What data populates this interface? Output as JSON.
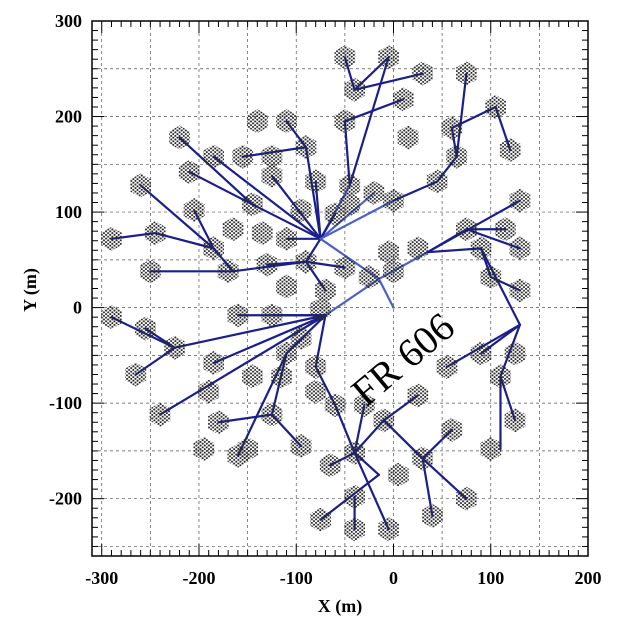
{
  "chart_data": {
    "type": "scatter",
    "xlabel": "X (m)",
    "ylabel": "Y (m)",
    "xlim": [
      -310,
      200
    ],
    "ylim": [
      -260,
      300
    ],
    "xticks": [
      -300,
      -200,
      -100,
      0,
      100,
      200
    ],
    "yticks": [
      -200,
      -100,
      0,
      100,
      200,
      300
    ],
    "xtick_labels": [
      "-300",
      "-200",
      "-100",
      "0",
      "100",
      "200"
    ],
    "ytick_labels": [
      "-200",
      "-100",
      "0",
      "100",
      "200",
      "300"
    ],
    "grid": true,
    "annotation": {
      "text": "FR 606",
      "x": 0,
      "y": -50,
      "rotation_deg": -40
    },
    "colors": {
      "cable_main": "#1a1f8c",
      "cable_light": "#4a62c8",
      "tile": "#2b2b2b",
      "grid": "#555555"
    },
    "core": {
      "x": -15,
      "y": 30
    },
    "hubs": [
      {
        "x": -75,
        "y": 72
      },
      {
        "x": 35,
        "y": 58
      },
      {
        "x": -70,
        "y": -8
      },
      {
        "x": -15,
        "y": -120
      }
    ],
    "tiles": [
      {
        "x": -50,
        "y": 262
      },
      {
        "x": -5,
        "y": 262
      },
      {
        "x": 30,
        "y": 245
      },
      {
        "x": 75,
        "y": 245
      },
      {
        "x": -40,
        "y": 228
      },
      {
        "x": 10,
        "y": 218
      },
      {
        "x": 105,
        "y": 210
      },
      {
        "x": -140,
        "y": 195
      },
      {
        "x": -110,
        "y": 195
      },
      {
        "x": -50,
        "y": 195
      },
      {
        "x": 60,
        "y": 188
      },
      {
        "x": -220,
        "y": 178
      },
      {
        "x": -90,
        "y": 168
      },
      {
        "x": 15,
        "y": 178
      },
      {
        "x": 120,
        "y": 165
      },
      {
        "x": -185,
        "y": 158
      },
      {
        "x": -155,
        "y": 158
      },
      {
        "x": -125,
        "y": 158
      },
      {
        "x": 65,
        "y": 158
      },
      {
        "x": -210,
        "y": 142
      },
      {
        "x": -125,
        "y": 138
      },
      {
        "x": -80,
        "y": 132
      },
      {
        "x": -45,
        "y": 128
      },
      {
        "x": -20,
        "y": 120
      },
      {
        "x": 45,
        "y": 132
      },
      {
        "x": -260,
        "y": 128
      },
      {
        "x": -45,
        "y": 108
      },
      {
        "x": 0,
        "y": 112
      },
      {
        "x": -205,
        "y": 102
      },
      {
        "x": -145,
        "y": 108
      },
      {
        "x": -95,
        "y": 102
      },
      {
        "x": -60,
        "y": 98
      },
      {
        "x": 130,
        "y": 112
      },
      {
        "x": -290,
        "y": 72
      },
      {
        "x": -245,
        "y": 78
      },
      {
        "x": -165,
        "y": 82
      },
      {
        "x": -135,
        "y": 78
      },
      {
        "x": -110,
        "y": 72
      },
      {
        "x": 75,
        "y": 82
      },
      {
        "x": 115,
        "y": 82
      },
      {
        "x": -185,
        "y": 62
      },
      {
        "x": -5,
        "y": 58
      },
      {
        "x": 25,
        "y": 62
      },
      {
        "x": 90,
        "y": 62
      },
      {
        "x": 130,
        "y": 62
      },
      {
        "x": -250,
        "y": 38
      },
      {
        "x": -170,
        "y": 38
      },
      {
        "x": -130,
        "y": 45
      },
      {
        "x": -90,
        "y": 48
      },
      {
        "x": -50,
        "y": 42
      },
      {
        "x": -25,
        "y": 32
      },
      {
        "x": 0,
        "y": 38
      },
      {
        "x": 100,
        "y": 32
      },
      {
        "x": -110,
        "y": 22
      },
      {
        "x": -70,
        "y": 18
      },
      {
        "x": 130,
        "y": 18
      },
      {
        "x": -290,
        "y": -10
      },
      {
        "x": -160,
        "y": -8
      },
      {
        "x": -125,
        "y": -8
      },
      {
        "x": -75,
        "y": -2
      },
      {
        "x": -255,
        "y": -22
      },
      {
        "x": -95,
        "y": -32
      },
      {
        "x": -225,
        "y": -42
      },
      {
        "x": -110,
        "y": -48
      },
      {
        "x": 90,
        "y": -48
      },
      {
        "x": 125,
        "y": -48
      },
      {
        "x": -185,
        "y": -58
      },
      {
        "x": -80,
        "y": -62
      },
      {
        "x": 55,
        "y": -62
      },
      {
        "x": -265,
        "y": -70
      },
      {
        "x": -145,
        "y": -72
      },
      {
        "x": -115,
        "y": -72
      },
      {
        "x": 110,
        "y": -72
      },
      {
        "x": -190,
        "y": -88
      },
      {
        "x": -80,
        "y": -88
      },
      {
        "x": 25,
        "y": -92
      },
      {
        "x": -240,
        "y": -112
      },
      {
        "x": -60,
        "y": -102
      },
      {
        "x": -30,
        "y": -102
      },
      {
        "x": -125,
        "y": -112
      },
      {
        "x": 125,
        "y": -118
      },
      {
        "x": -180,
        "y": -120
      },
      {
        "x": -10,
        "y": -118
      },
      {
        "x": 60,
        "y": -128
      },
      {
        "x": -95,
        "y": -145
      },
      {
        "x": -195,
        "y": -148
      },
      {
        "x": -150,
        "y": -148
      },
      {
        "x": -40,
        "y": -152
      },
      {
        "x": 100,
        "y": -148
      },
      {
        "x": 30,
        "y": -158
      },
      {
        "x": 5,
        "y": -175
      },
      {
        "x": -160,
        "y": -155
      },
      {
        "x": -65,
        "y": -165
      },
      {
        "x": -40,
        "y": -198
      },
      {
        "x": 75,
        "y": -200
      },
      {
        "x": 40,
        "y": -218
      },
      {
        "x": -75,
        "y": -222
      },
      {
        "x": -40,
        "y": -232
      },
      {
        "x": -5,
        "y": -232
      }
    ],
    "cables": [
      {
        "from": [
          -15,
          30
        ],
        "to": [
          -75,
          72
        ]
      },
      {
        "from": [
          -15,
          30
        ],
        "to": [
          35,
          58
        ]
      },
      {
        "from": [
          -15,
          30
        ],
        "to": [
          -70,
          -8
        ]
      },
      {
        "from": [
          -15,
          30
        ],
        "to": [
          0,
          0
        ]
      },
      {
        "from": [
          -75,
          72
        ],
        "to": [
          -80,
          132
        ]
      },
      {
        "from": [
          -75,
          72
        ],
        "to": [
          -90,
          168
        ]
      },
      {
        "from": [
          -75,
          72
        ],
        "to": [
          -45,
          128
        ]
      },
      {
        "from": [
          -75,
          72
        ],
        "to": [
          -20,
          120
        ]
      },
      {
        "from": [
          -75,
          72
        ],
        "to": [
          -145,
          108
        ]
      },
      {
        "from": [
          -75,
          72
        ],
        "to": [
          -125,
          138
        ]
      },
      {
        "from": [
          -75,
          72
        ],
        "to": [
          -185,
          158
        ]
      },
      {
        "from": [
          -75,
          72
        ],
        "to": [
          -60,
          98
        ]
      },
      {
        "from": [
          -75,
          72
        ],
        "to": [
          -110,
          72
        ]
      },
      {
        "from": [
          -75,
          72
        ],
        "to": [
          -90,
          48
        ]
      },
      {
        "from": [
          -75,
          72
        ],
        "to": [
          0,
          112
        ]
      },
      {
        "from": [
          -90,
          168
        ],
        "to": [
          -110,
          195
        ]
      },
      {
        "from": [
          -90,
          168
        ],
        "to": [
          -155,
          158
        ]
      },
      {
        "from": [
          -45,
          128
        ],
        "to": [
          -5,
          262
        ]
      },
      {
        "from": [
          -5,
          262
        ],
        "to": [
          -40,
          228
        ]
      },
      {
        "from": [
          -40,
          228
        ],
        "to": [
          -50,
          262
        ]
      },
      {
        "from": [
          -40,
          228
        ],
        "to": [
          30,
          245
        ]
      },
      {
        "from": [
          -45,
          128
        ],
        "to": [
          -50,
          195
        ]
      },
      {
        "from": [
          -50,
          195
        ],
        "to": [
          10,
          218
        ]
      },
      {
        "from": [
          -145,
          108
        ],
        "to": [
          -220,
          178
        ]
      },
      {
        "from": [
          -145,
          108
        ],
        "to": [
          -210,
          142
        ]
      },
      {
        "from": [
          0,
          112
        ],
        "to": [
          45,
          132
        ]
      },
      {
        "from": [
          45,
          132
        ],
        "to": [
          65,
          158
        ]
      },
      {
        "from": [
          65,
          158
        ],
        "to": [
          75,
          245
        ]
      },
      {
        "from": [
          65,
          158
        ],
        "to": [
          60,
          188
        ]
      },
      {
        "from": [
          60,
          188
        ],
        "to": [
          105,
          210
        ]
      },
      {
        "from": [
          105,
          210
        ],
        "to": [
          120,
          165
        ]
      },
      {
        "from": [
          -90,
          48
        ],
        "to": [
          -165,
          38
        ]
      },
      {
        "from": [
          -165,
          38
        ],
        "to": [
          -250,
          38
        ]
      },
      {
        "from": [
          -165,
          38
        ],
        "to": [
          -185,
          62
        ]
      },
      {
        "from": [
          -185,
          62
        ],
        "to": [
          -205,
          102
        ]
      },
      {
        "from": [
          -185,
          62
        ],
        "to": [
          -260,
          128
        ]
      },
      {
        "from": [
          -185,
          62
        ],
        "to": [
          -245,
          78
        ]
      },
      {
        "from": [
          -245,
          78
        ],
        "to": [
          -290,
          72
        ]
      },
      {
        "from": [
          -90,
          48
        ],
        "to": [
          -130,
          45
        ]
      },
      {
        "from": [
          -90,
          48
        ],
        "to": [
          -70,
          18
        ]
      },
      {
        "from": [
          -90,
          48
        ],
        "to": [
          -50,
          42
        ]
      },
      {
        "from": [
          35,
          58
        ],
        "to": [
          130,
          112
        ]
      },
      {
        "from": [
          35,
          58
        ],
        "to": [
          75,
          82
        ]
      },
      {
        "from": [
          75,
          82
        ],
        "to": [
          115,
          82
        ]
      },
      {
        "from": [
          75,
          82
        ],
        "to": [
          130,
          62
        ]
      },
      {
        "from": [
          35,
          58
        ],
        "to": [
          90,
          62
        ]
      },
      {
        "from": [
          90,
          62
        ],
        "to": [
          100,
          32
        ]
      },
      {
        "from": [
          100,
          32
        ],
        "to": [
          130,
          18
        ]
      },
      {
        "from": [
          90,
          62
        ],
        "to": [
          130,
          -18
        ]
      },
      {
        "from": [
          130,
          -18
        ],
        "to": [
          55,
          -62
        ]
      },
      {
        "from": [
          130,
          -18
        ],
        "to": [
          90,
          -48
        ]
      },
      {
        "from": [
          130,
          -18
        ],
        "to": [
          110,
          -72
        ]
      },
      {
        "from": [
          110,
          -72
        ],
        "to": [
          125,
          -118
        ]
      },
      {
        "from": [
          110,
          -72
        ],
        "to": [
          110,
          -148
        ]
      },
      {
        "from": [
          -70,
          -8
        ],
        "to": [
          -225,
          -42
        ]
      },
      {
        "from": [
          -225,
          -42
        ],
        "to": [
          -255,
          -22
        ]
      },
      {
        "from": [
          -225,
          -42
        ],
        "to": [
          -290,
          -10
        ]
      },
      {
        "from": [
          -225,
          -42
        ],
        "to": [
          -265,
          -70
        ]
      },
      {
        "from": [
          -70,
          -8
        ],
        "to": [
          -240,
          -112
        ]
      },
      {
        "from": [
          -70,
          -8
        ],
        "to": [
          -185,
          -58
        ]
      },
      {
        "from": [
          -70,
          -8
        ],
        "to": [
          -125,
          -8
        ]
      },
      {
        "from": [
          -70,
          -8
        ],
        "to": [
          -160,
          -8
        ]
      },
      {
        "from": [
          -70,
          -8
        ],
        "to": [
          -110,
          -48
        ]
      },
      {
        "from": [
          -110,
          -48
        ],
        "to": [
          -160,
          -155
        ]
      },
      {
        "from": [
          -110,
          -48
        ],
        "to": [
          -125,
          -112
        ]
      },
      {
        "from": [
          -125,
          -112
        ],
        "to": [
          -180,
          -120
        ]
      },
      {
        "from": [
          -125,
          -112
        ],
        "to": [
          -95,
          -145
        ]
      },
      {
        "from": [
          -70,
          -8
        ],
        "to": [
          -80,
          -62
        ]
      },
      {
        "from": [
          -80,
          -62
        ],
        "to": [
          -60,
          -102
        ]
      },
      {
        "from": [
          -60,
          -102
        ],
        "to": [
          -40,
          -152
        ]
      },
      {
        "from": [
          -40,
          -152
        ],
        "to": [
          -30,
          -102
        ]
      },
      {
        "from": [
          -40,
          -152
        ],
        "to": [
          -65,
          -165
        ]
      },
      {
        "from": [
          -40,
          -152
        ],
        "to": [
          -10,
          -118
        ]
      },
      {
        "from": [
          -10,
          -118
        ],
        "to": [
          25,
          -92
        ]
      },
      {
        "from": [
          -10,
          -118
        ],
        "to": [
          30,
          -158
        ]
      },
      {
        "from": [
          30,
          -158
        ],
        "to": [
          60,
          -128
        ]
      },
      {
        "from": [
          30,
          -158
        ],
        "to": [
          40,
          -218
        ]
      },
      {
        "from": [
          30,
          -158
        ],
        "to": [
          75,
          -200
        ]
      },
      {
        "from": [
          -40,
          -152
        ],
        "to": [
          -5,
          -232
        ]
      },
      {
        "from": [
          -40,
          -152
        ],
        "to": [
          -15,
          -175
        ]
      },
      {
        "from": [
          -15,
          -175
        ],
        "to": [
          -75,
          -222
        ]
      },
      {
        "from": [
          -40,
          -198
        ],
        "to": [
          -40,
          -232
        ]
      }
    ]
  }
}
